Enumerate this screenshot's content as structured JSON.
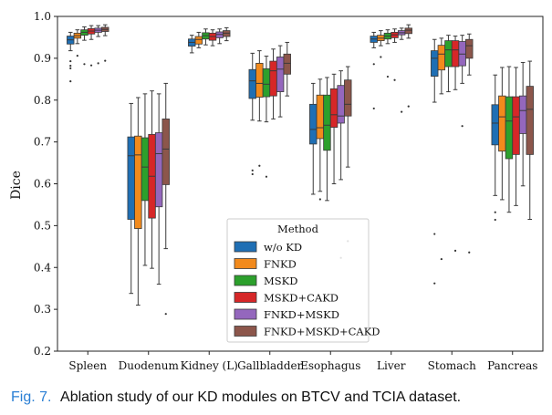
{
  "caption": {
    "label": "Fig. 7.",
    "text": "Ablation study of our KD modules on BTCV and TCIA dataset."
  },
  "chart_data": {
    "type": "box",
    "ylabel": "Dice",
    "xlabel": "",
    "ylim": [
      0.2,
      1.0
    ],
    "yticks": [
      "0.2",
      "0.3",
      "0.4",
      "0.5",
      "0.6",
      "0.7",
      "0.8",
      "0.9",
      "1.0"
    ],
    "categories": [
      "Spleen",
      "Duodenum",
      "Kidney (L)",
      "Gallbladder",
      "Esophagus",
      "Liver",
      "Stomach",
      "Pancreas"
    ],
    "legend": {
      "title": "Method",
      "position": "lower-center"
    },
    "series": [
      {
        "name": "w/o KD",
        "color": "#1f6fb4",
        "boxes": [
          {
            "q1": 0.934,
            "median": 0.944,
            "q3": 0.953,
            "wlo": 0.918,
            "whi": 0.962,
            "fliers": [
              0.876,
              0.882,
              0.893,
              0.845
            ]
          },
          {
            "q1": 0.515,
            "median": 0.667,
            "q3": 0.712,
            "wlo": 0.338,
            "whi": 0.792,
            "fliers": []
          },
          {
            "q1": 0.929,
            "median": 0.938,
            "q3": 0.946,
            "wlo": 0.913,
            "whi": 0.955,
            "fliers": []
          },
          {
            "q1": 0.804,
            "median": 0.846,
            "q3": 0.873,
            "wlo": 0.752,
            "whi": 0.912,
            "fliers": [
              0.632,
              0.623
            ]
          },
          {
            "q1": 0.695,
            "median": 0.73,
            "q3": 0.79,
            "wlo": 0.575,
            "whi": 0.84,
            "fliers": []
          },
          {
            "q1": 0.938,
            "median": 0.946,
            "q3": 0.953,
            "wlo": 0.925,
            "whi": 0.962,
            "fliers": [
              0.886,
              0.78
            ]
          },
          {
            "q1": 0.857,
            "median": 0.9,
            "q3": 0.918,
            "wlo": 0.795,
            "whi": 0.945,
            "fliers": [
              0.48,
              0.362
            ]
          },
          {
            "q1": 0.693,
            "median": 0.745,
            "q3": 0.789,
            "wlo": 0.572,
            "whi": 0.86,
            "fliers": [
              0.532,
              0.514
            ]
          }
        ]
      },
      {
        "name": "FNKD",
        "color": "#f28a1c",
        "boxes": [
          {
            "q1": 0.948,
            "median": 0.954,
            "q3": 0.96,
            "wlo": 0.935,
            "whi": 0.968,
            "fliers": [
              0.906
            ]
          },
          {
            "q1": 0.493,
            "median": 0.669,
            "q3": 0.714,
            "wlo": 0.31,
            "whi": 0.806,
            "fliers": []
          },
          {
            "q1": 0.934,
            "median": 0.945,
            "q3": 0.952,
            "wlo": 0.925,
            "whi": 0.962,
            "fliers": []
          },
          {
            "q1": 0.807,
            "median": 0.84,
            "q3": 0.888,
            "wlo": 0.75,
            "whi": 0.918,
            "fliers": [
              0.643
            ]
          },
          {
            "q1": 0.708,
            "median": 0.734,
            "q3": 0.812,
            "wlo": 0.582,
            "whi": 0.85,
            "fliers": [
              0.563
            ]
          },
          {
            "q1": 0.942,
            "median": 0.948,
            "q3": 0.955,
            "wlo": 0.93,
            "whi": 0.966,
            "fliers": [
              0.903
            ]
          },
          {
            "q1": 0.872,
            "median": 0.91,
            "q3": 0.931,
            "wlo": 0.815,
            "whi": 0.948,
            "fliers": [
              0.42
            ]
          },
          {
            "q1": 0.678,
            "median": 0.76,
            "q3": 0.81,
            "wlo": 0.562,
            "whi": 0.878,
            "fliers": []
          }
        ]
      },
      {
        "name": "MSKD",
        "color": "#2ca02c",
        "boxes": [
          {
            "q1": 0.955,
            "median": 0.962,
            "q3": 0.968,
            "wlo": 0.943,
            "whi": 0.975,
            "fliers": [
              0.886
            ]
          },
          {
            "q1": 0.56,
            "median": 0.64,
            "q3": 0.71,
            "wlo": 0.405,
            "whi": 0.815,
            "fliers": []
          },
          {
            "q1": 0.946,
            "median": 0.954,
            "q3": 0.961,
            "wlo": 0.932,
            "whi": 0.97,
            "fliers": []
          },
          {
            "q1": 0.808,
            "median": 0.838,
            "q3": 0.875,
            "wlo": 0.748,
            "whi": 0.905,
            "fliers": [
              0.617
            ]
          },
          {
            "q1": 0.68,
            "median": 0.74,
            "q3": 0.812,
            "wlo": 0.56,
            "whi": 0.854,
            "fliers": []
          },
          {
            "q1": 0.946,
            "median": 0.953,
            "q3": 0.96,
            "wlo": 0.935,
            "whi": 0.968,
            "fliers": [
              0.856
            ]
          },
          {
            "q1": 0.88,
            "median": 0.92,
            "q3": 0.942,
            "wlo": 0.82,
            "whi": 0.955,
            "fliers": []
          },
          {
            "q1": 0.66,
            "median": 0.75,
            "q3": 0.808,
            "wlo": 0.532,
            "whi": 0.88,
            "fliers": []
          }
        ]
      },
      {
        "name": "MSKD+CAKD",
        "color": "#d62728",
        "boxes": [
          {
            "q1": 0.958,
            "median": 0.965,
            "q3": 0.971,
            "wlo": 0.945,
            "whi": 0.978,
            "fliers": [
              0.883
            ]
          },
          {
            "q1": 0.518,
            "median": 0.618,
            "q3": 0.718,
            "wlo": 0.398,
            "whi": 0.822,
            "fliers": []
          },
          {
            "q1": 0.943,
            "median": 0.952,
            "q3": 0.96,
            "wlo": 0.93,
            "whi": 0.968,
            "fliers": []
          },
          {
            "q1": 0.81,
            "median": 0.87,
            "q3": 0.893,
            "wlo": 0.755,
            "whi": 0.922,
            "fliers": []
          },
          {
            "q1": 0.735,
            "median": 0.765,
            "q3": 0.827,
            "wlo": 0.6,
            "whi": 0.862,
            "fliers": []
          },
          {
            "q1": 0.949,
            "median": 0.956,
            "q3": 0.962,
            "wlo": 0.938,
            "whi": 0.97,
            "fliers": [
              0.848
            ]
          },
          {
            "q1": 0.88,
            "median": 0.92,
            "q3": 0.942,
            "wlo": 0.825,
            "whi": 0.953,
            "fliers": [
              0.44
            ]
          },
          {
            "q1": 0.67,
            "median": 0.76,
            "q3": 0.808,
            "wlo": 0.548,
            "whi": 0.878,
            "fliers": []
          }
        ]
      },
      {
        "name": "FNKD+MSKD",
        "color": "#9467bd",
        "boxes": [
          {
            "q1": 0.962,
            "median": 0.967,
            "q3": 0.972,
            "wlo": 0.952,
            "whi": 0.978,
            "fliers": [
              0.888
            ]
          },
          {
            "q1": 0.545,
            "median": 0.672,
            "q3": 0.722,
            "wlo": 0.36,
            "whi": 0.815,
            "fliers": []
          },
          {
            "q1": 0.949,
            "median": 0.957,
            "q3": 0.963,
            "wlo": 0.935,
            "whi": 0.97,
            "fliers": []
          },
          {
            "q1": 0.82,
            "median": 0.874,
            "q3": 0.903,
            "wlo": 0.76,
            "whi": 0.93,
            "fliers": []
          },
          {
            "q1": 0.745,
            "median": 0.762,
            "q3": 0.835,
            "wlo": 0.61,
            "whi": 0.87,
            "fliers": [
              0.423
            ]
          },
          {
            "q1": 0.956,
            "median": 0.961,
            "q3": 0.966,
            "wlo": 0.945,
            "whi": 0.972,
            "fliers": [
              0.772
            ]
          },
          {
            "q1": 0.882,
            "median": 0.91,
            "q3": 0.94,
            "wlo": 0.84,
            "whi": 0.955,
            "fliers": [
              0.738
            ]
          },
          {
            "q1": 0.72,
            "median": 0.775,
            "q3": 0.81,
            "wlo": 0.595,
            "whi": 0.89,
            "fliers": []
          }
        ]
      },
      {
        "name": "FNKD+MSKD+CAKD",
        "color": "#8c564b",
        "boxes": [
          {
            "q1": 0.964,
            "median": 0.969,
            "q3": 0.974,
            "wlo": 0.954,
            "whi": 0.98,
            "fliers": [
              0.894
            ]
          },
          {
            "q1": 0.598,
            "median": 0.683,
            "q3": 0.755,
            "wlo": 0.445,
            "whi": 0.84,
            "fliers": [
              0.289
            ]
          },
          {
            "q1": 0.952,
            "median": 0.96,
            "q3": 0.966,
            "wlo": 0.942,
            "whi": 0.973,
            "fliers": []
          },
          {
            "q1": 0.862,
            "median": 0.888,
            "q3": 0.91,
            "wlo": 0.81,
            "whi": 0.938,
            "fliers": []
          },
          {
            "q1": 0.762,
            "median": 0.79,
            "q3": 0.848,
            "wlo": 0.64,
            "whi": 0.88,
            "fliers": [
              0.463
            ]
          },
          {
            "q1": 0.959,
            "median": 0.967,
            "q3": 0.972,
            "wlo": 0.948,
            "whi": 0.98,
            "fliers": [
              0.785
            ]
          },
          {
            "q1": 0.9,
            "median": 0.93,
            "q3": 0.945,
            "wlo": 0.86,
            "whi": 0.958,
            "fliers": [
              0.436
            ]
          },
          {
            "q1": 0.67,
            "median": 0.778,
            "q3": 0.833,
            "wlo": 0.515,
            "whi": 0.893,
            "fliers": []
          }
        ]
      }
    ]
  }
}
